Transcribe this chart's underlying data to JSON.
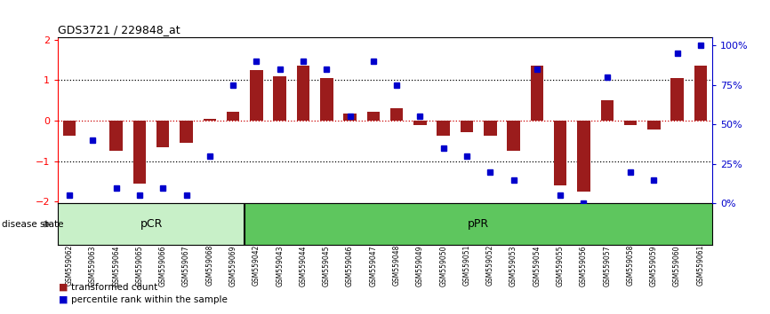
{
  "title": "GDS3721 / 229848_at",
  "samples": [
    "GSM559062",
    "GSM559063",
    "GSM559064",
    "GSM559065",
    "GSM559066",
    "GSM559067",
    "GSM559068",
    "GSM559069",
    "GSM559042",
    "GSM559043",
    "GSM559044",
    "GSM559045",
    "GSM559046",
    "GSM559047",
    "GSM559048",
    "GSM559049",
    "GSM559050",
    "GSM559051",
    "GSM559052",
    "GSM559053",
    "GSM559054",
    "GSM559055",
    "GSM559056",
    "GSM559057",
    "GSM559058",
    "GSM559059",
    "GSM559060",
    "GSM559061"
  ],
  "bar_values": [
    -0.38,
    0.0,
    -0.75,
    -1.55,
    -0.65,
    -0.55,
    0.05,
    0.22,
    1.25,
    1.1,
    1.35,
    1.05,
    0.18,
    0.22,
    0.3,
    -0.12,
    -0.38,
    -0.28,
    -0.38,
    -0.75,
    1.35,
    -1.6,
    -1.75,
    0.5,
    -0.12,
    -0.22,
    1.05,
    1.35
  ],
  "pct_values": [
    5,
    40,
    10,
    5,
    10,
    5,
    30,
    75,
    90,
    85,
    90,
    85,
    55,
    90,
    75,
    55,
    35,
    30,
    20,
    15,
    85,
    5,
    0,
    80,
    20,
    15,
    95,
    100
  ],
  "pCR_count": 8,
  "ylim": [
    -2.05,
    2.05
  ],
  "pct_ylim": [
    0,
    105
  ],
  "bar_color": "#9B1C1C",
  "pct_color": "#0000CC",
  "pCR_color": "#C8F0C8",
  "pPR_color": "#5EC65E",
  "zero_line_color": "#CC0000",
  "hline_color": "#000000",
  "box_color_even": "#D4D4D4",
  "box_color_odd": "#BCBCBC",
  "label_bar": "transformed count",
  "label_pct": "percentile rank within the sample",
  "disease_state_label": "disease state",
  "pCR_label": "pCR",
  "pPR_label": "pPR",
  "yticks_left": [
    -2,
    -1,
    0,
    1,
    2
  ],
  "yticks_right": [
    0,
    25,
    50,
    75,
    100
  ],
  "ytick_labels_right": [
    "0%",
    "25%",
    "50%",
    "75%",
    "100%"
  ]
}
